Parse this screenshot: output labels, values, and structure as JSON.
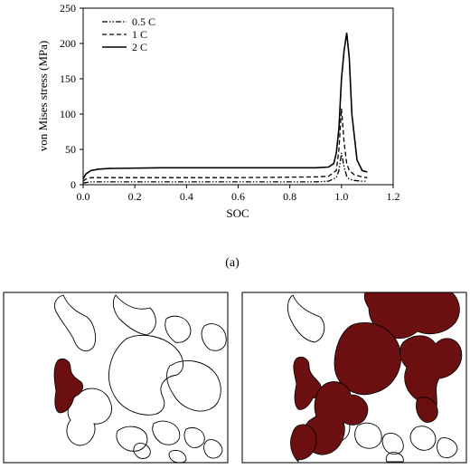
{
  "chart_data": {
    "type": "line",
    "xlabel": "SOC",
    "ylabel": "von Mises stress (MPa)",
    "xlim": [
      0,
      1.2
    ],
    "ylim": [
      0,
      250
    ],
    "xticks": [
      "0.0",
      "0.2",
      "0.4",
      "0.6",
      "0.8",
      "1.0",
      "1.2"
    ],
    "yticks": [
      "0",
      "50",
      "100",
      "150",
      "200",
      "250"
    ],
    "grid": false,
    "legend_position": "top-left",
    "series": [
      {
        "name": "0.5 C",
        "style": "dash-dot-dot",
        "x": [
          0,
          0.01,
          0.03,
          0.1,
          0.3,
          0.6,
          0.9,
          0.95,
          0.98,
          0.99,
          1.0,
          1.01,
          1.02,
          1.03,
          1.05,
          1.08,
          1.1
        ],
        "y": [
          2,
          3,
          4,
          4,
          4,
          4,
          4,
          5,
          10,
          20,
          45,
          25,
          12,
          8,
          6,
          5,
          5
        ]
      },
      {
        "name": "1 C",
        "style": "dashed",
        "x": [
          0,
          0.01,
          0.03,
          0.1,
          0.3,
          0.6,
          0.9,
          0.95,
          0.98,
          0.99,
          1.0,
          1.01,
          1.02,
          1.03,
          1.05,
          1.08,
          1.1
        ],
        "y": [
          5,
          8,
          10,
          10,
          10,
          10,
          11,
          12,
          20,
          50,
          108,
          60,
          30,
          20,
          14,
          11,
          10
        ]
      },
      {
        "name": "2 C",
        "style": "solid",
        "x": [
          0,
          0.01,
          0.03,
          0.06,
          0.1,
          0.3,
          0.6,
          0.9,
          0.95,
          0.97,
          0.98,
          0.99,
          1.0,
          1.01,
          1.02,
          1.03,
          1.04,
          1.06,
          1.08,
          1.1
        ],
        "y": [
          8,
          15,
          20,
          22,
          23,
          24,
          24,
          24,
          25,
          30,
          45,
          80,
          150,
          190,
          215,
          180,
          100,
          35,
          20,
          18
        ]
      }
    ]
  },
  "panel_label": "(a)",
  "colors": {
    "particle_fill": "#6b0f10",
    "outline": "#000000",
    "frame": "#222222"
  }
}
